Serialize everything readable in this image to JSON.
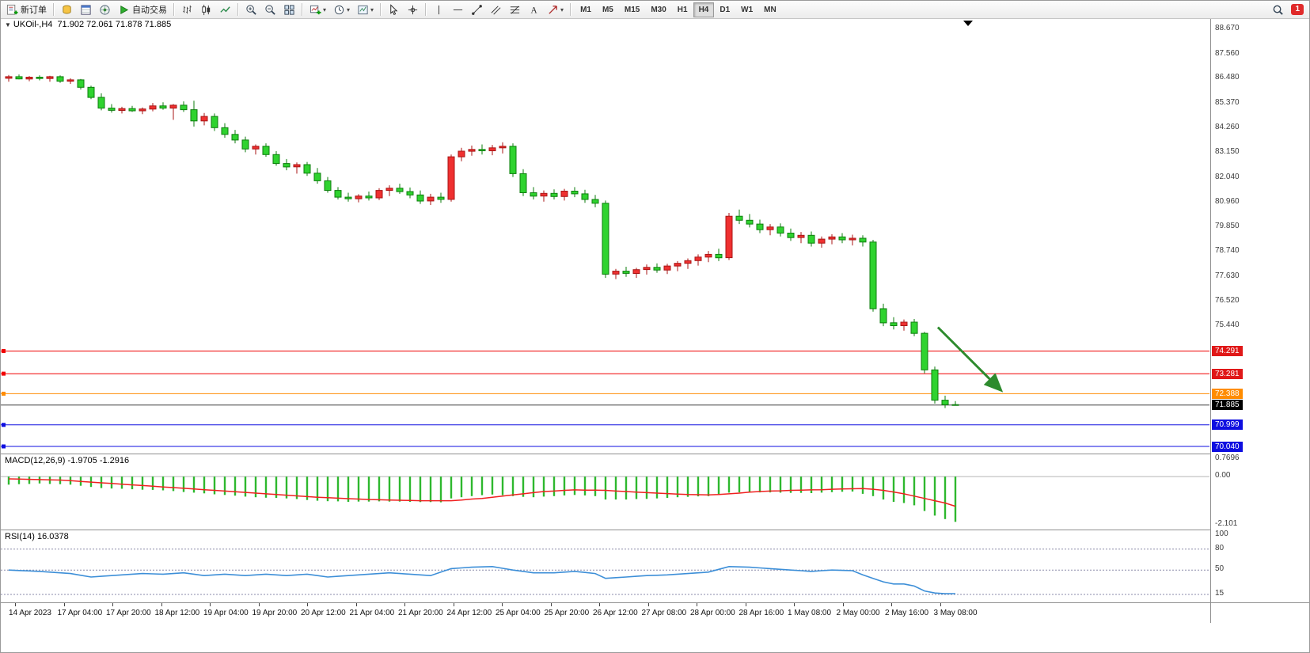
{
  "glyphs": {
    "caret": "▾",
    "collapse": "▼"
  },
  "toolbar": {
    "new_order_label": "新订单",
    "autotrading_label": "自动交易",
    "timeframes": [
      "M1",
      "M5",
      "M15",
      "M30",
      "H1",
      "H4",
      "D1",
      "W1",
      "MN"
    ],
    "active_timeframe": "H4",
    "notification_count": "1"
  },
  "icons": {
    "new_order": "document-plus",
    "market_watch": "coin-stack",
    "data_window": "table",
    "navigator": "compass",
    "autotrading": "play-triangle",
    "chart_bars": "ohlc-bars",
    "chart_candles": "candlesticks",
    "chart_line": "line-zigzag",
    "zoom_in": "magnifier-plus",
    "zoom_out": "magnifier-minus",
    "tile_windows": "grid-2x2",
    "new_chart": "chart-plus",
    "profiles": "clock",
    "templates": "chart-picture",
    "cursor": "arrow-pointer",
    "crosshair": "crosshair",
    "vertical_line": "vertical-line",
    "horizontal_line": "horizontal-line",
    "trendline": "diagonal-line",
    "channel": "parallel-lines",
    "fibonacci": "fibo-lines",
    "text_tool": "letter-A",
    "arrows_tool": "diagonal-arrow",
    "search": "magnifier",
    "notification": "red-badge"
  },
  "chart": {
    "symbol_title": "UKOil-,H4",
    "ohlc_readout": "71.902 72.061 71.878 71.885"
  },
  "indicators": {
    "macd_label": "MACD(12,26,9)",
    "macd_values": "-1.9705 -1.2916",
    "rsi_label": "RSI(14)",
    "rsi_value": "16.0378"
  },
  "chart_data": {
    "type": "candlestick",
    "symbol": "UKOil-",
    "timeframe": "H4",
    "price_axis": {
      "labels": [
        "88.670",
        "87.560",
        "86.480",
        "85.370",
        "84.260",
        "83.150",
        "82.040",
        "80.960",
        "79.850",
        "78.740",
        "77.630",
        "76.520",
        "75.440"
      ],
      "min": 69.9,
      "max": 89.1
    },
    "price_lines": [
      {
        "label": "74.291",
        "value": 74.291,
        "color": "#f00000",
        "label_bg": "#e01818",
        "handle": true
      },
      {
        "label": "73.281",
        "value": 73.281,
        "color": "#f00000",
        "label_bg": "#e01818",
        "handle": true
      },
      {
        "label": "72.388",
        "value": 72.388,
        "color": "#ff8c00",
        "label_bg": "#ff8c00",
        "handle": true
      },
      {
        "label": "71.885",
        "value": 71.885,
        "color": "#3a3a3a",
        "label_bg": "#000000",
        "handle": false
      },
      {
        "label": "70.999",
        "value": 70.999,
        "color": "#0e0ee0",
        "label_bg": "#0e0ee0",
        "handle": true
      },
      {
        "label": "70.040",
        "value": 70.04,
        "color": "#0e0ee0",
        "label_bg": "#0e0ee0",
        "handle": true
      }
    ],
    "candles": [
      [
        86.45,
        86.6,
        86.3,
        86.52
      ],
      [
        86.52,
        86.62,
        86.4,
        86.42
      ],
      [
        86.42,
        86.55,
        86.32,
        86.5
      ],
      [
        86.5,
        86.58,
        86.36,
        86.44
      ],
      [
        86.44,
        86.56,
        86.3,
        86.52
      ],
      [
        86.52,
        86.58,
        86.25,
        86.32
      ],
      [
        86.32,
        86.45,
        86.2,
        86.38
      ],
      [
        86.38,
        86.42,
        85.95,
        86.05
      ],
      [
        86.05,
        86.12,
        85.52,
        85.6
      ],
      [
        85.6,
        85.78,
        85.02,
        85.12
      ],
      [
        85.12,
        85.3,
        84.92,
        85.02
      ],
      [
        85.02,
        85.18,
        84.88,
        85.1
      ],
      [
        85.1,
        85.22,
        84.95,
        85.0
      ],
      [
        85.0,
        85.15,
        84.85,
        85.08
      ],
      [
        85.08,
        85.35,
        84.98,
        85.22
      ],
      [
        85.22,
        85.38,
        85.05,
        85.12
      ],
      [
        85.12,
        85.3,
        84.6,
        85.25
      ],
      [
        85.25,
        85.42,
        84.95,
        85.05
      ],
      [
        85.05,
        85.45,
        84.3,
        84.55
      ],
      [
        84.55,
        84.9,
        84.35,
        84.75
      ],
      [
        84.75,
        84.88,
        84.1,
        84.25
      ],
      [
        84.25,
        84.45,
        83.8,
        83.95
      ],
      [
        83.95,
        84.15,
        83.55,
        83.7
      ],
      [
        83.7,
        83.85,
        83.15,
        83.3
      ],
      [
        83.3,
        83.5,
        83.05,
        83.42
      ],
      [
        83.42,
        83.55,
        82.95,
        83.05
      ],
      [
        83.05,
        83.2,
        82.55,
        82.65
      ],
      [
        82.65,
        82.85,
        82.35,
        82.5
      ],
      [
        82.5,
        82.7,
        82.2,
        82.6
      ],
      [
        82.6,
        82.72,
        82.1,
        82.22
      ],
      [
        82.22,
        82.45,
        81.75,
        81.88
      ],
      [
        81.88,
        82.05,
        81.35,
        81.45
      ],
      [
        81.45,
        81.6,
        81.05,
        81.15
      ],
      [
        81.15,
        81.35,
        80.95,
        81.08
      ],
      [
        81.08,
        81.28,
        80.92,
        81.2
      ],
      [
        81.2,
        81.4,
        81.0,
        81.12
      ],
      [
        81.12,
        81.55,
        81.02,
        81.45
      ],
      [
        81.45,
        81.68,
        81.2,
        81.55
      ],
      [
        81.55,
        81.75,
        81.3,
        81.4
      ],
      [
        81.4,
        81.58,
        81.1,
        81.25
      ],
      [
        81.25,
        81.45,
        80.85,
        80.98
      ],
      [
        80.98,
        81.3,
        80.8,
        81.15
      ],
      [
        81.15,
        81.35,
        80.9,
        81.05
      ],
      [
        81.05,
        83.05,
        80.95,
        82.95
      ],
      [
        82.95,
        83.35,
        82.75,
        83.2
      ],
      [
        83.2,
        83.45,
        83.0,
        83.28
      ],
      [
        83.28,
        83.5,
        83.05,
        83.22
      ],
      [
        83.22,
        83.48,
        83.02,
        83.35
      ],
      [
        83.35,
        83.6,
        83.1,
        83.42
      ],
      [
        83.42,
        83.55,
        82.05,
        82.2
      ],
      [
        82.2,
        82.4,
        81.2,
        81.35
      ],
      [
        81.35,
        81.6,
        81.05,
        81.2
      ],
      [
        81.2,
        81.45,
        80.95,
        81.32
      ],
      [
        81.32,
        81.5,
        81.05,
        81.18
      ],
      [
        81.18,
        81.52,
        81.0,
        81.42
      ],
      [
        81.42,
        81.6,
        81.15,
        81.3
      ],
      [
        81.3,
        81.48,
        80.9,
        81.05
      ],
      [
        81.05,
        81.25,
        80.7,
        80.88
      ],
      [
        80.88,
        81.0,
        77.55,
        77.72
      ],
      [
        77.72,
        77.95,
        77.5,
        77.85
      ],
      [
        77.85,
        78.05,
        77.6,
        77.75
      ],
      [
        77.75,
        78.0,
        77.55,
        77.92
      ],
      [
        77.92,
        78.15,
        77.7,
        78.02
      ],
      [
        78.02,
        78.2,
        77.78,
        77.9
      ],
      [
        77.9,
        78.18,
        77.72,
        78.08
      ],
      [
        78.08,
        78.3,
        77.85,
        78.2
      ],
      [
        78.2,
        78.42,
        77.95,
        78.32
      ],
      [
        78.32,
        78.6,
        78.1,
        78.48
      ],
      [
        78.48,
        78.75,
        78.25,
        78.6
      ],
      [
        78.6,
        78.85,
        78.3,
        78.45
      ],
      [
        78.45,
        80.45,
        78.35,
        80.3
      ],
      [
        80.3,
        80.6,
        79.95,
        80.12
      ],
      [
        80.12,
        80.4,
        79.8,
        79.95
      ],
      [
        79.95,
        80.15,
        79.55,
        79.7
      ],
      [
        79.7,
        79.95,
        79.45,
        79.82
      ],
      [
        79.82,
        79.98,
        79.4,
        79.55
      ],
      [
        79.55,
        79.75,
        79.2,
        79.35
      ],
      [
        79.35,
        79.6,
        79.1,
        79.45
      ],
      [
        79.45,
        79.62,
        78.95,
        79.1
      ],
      [
        79.1,
        79.4,
        78.9,
        79.28
      ],
      [
        79.28,
        79.5,
        79.05,
        79.38
      ],
      [
        79.38,
        79.55,
        79.1,
        79.25
      ],
      [
        79.25,
        79.48,
        79.0,
        79.32
      ],
      [
        79.32,
        79.45,
        78.95,
        79.15
      ],
      [
        79.15,
        79.25,
        76.05,
        76.18
      ],
      [
        76.18,
        76.4,
        75.4,
        75.55
      ],
      [
        75.55,
        75.8,
        75.25,
        75.42
      ],
      [
        75.42,
        75.7,
        75.2,
        75.58
      ],
      [
        75.58,
        75.72,
        74.95,
        75.08
      ],
      [
        75.08,
        75.15,
        73.3,
        73.45
      ],
      [
        73.45,
        73.6,
        71.95,
        72.1
      ],
      [
        72.1,
        72.3,
        71.75,
        71.9
      ],
      [
        71.902,
        72.061,
        71.878,
        71.885
      ]
    ],
    "macd": {
      "histogram": [
        -0.35,
        -0.33,
        -0.32,
        -0.3,
        -0.32,
        -0.33,
        -0.35,
        -0.4,
        -0.45,
        -0.5,
        -0.52,
        -0.53,
        -0.55,
        -0.57,
        -0.58,
        -0.6,
        -0.63,
        -0.67,
        -0.7,
        -0.73,
        -0.77,
        -0.8,
        -0.83,
        -0.87,
        -0.9,
        -0.92,
        -0.93,
        -0.95,
        -0.98,
        -1.02,
        -1.05,
        -1.07,
        -1.08,
        -1.1,
        -1.09,
        -1.09,
        -1.08,
        -1.09,
        -1.09,
        -1.1,
        -1.11,
        -1.11,
        -1.12,
        -0.95,
        -0.9,
        -0.85,
        -0.81,
        -0.78,
        -0.81,
        -0.85,
        -0.88,
        -0.9,
        -0.87,
        -0.85,
        -0.82,
        -0.8,
        -0.82,
        -0.85,
        -1.0,
        -1.0,
        -1.0,
        -0.98,
        -0.97,
        -0.95,
        -0.93,
        -0.9,
        -0.88,
        -0.86,
        -0.85,
        -0.77,
        -0.7,
        -0.69,
        -0.68,
        -0.69,
        -0.69,
        -0.7,
        -0.71,
        -0.71,
        -0.72,
        -0.7,
        -0.68,
        -0.66,
        -0.65,
        -0.75,
        -0.85,
        -1.0,
        -1.1,
        -1.15,
        -1.25,
        -1.5,
        -1.7,
        -1.85,
        -1.9705
      ],
      "signal": [
        -0.1,
        -0.11,
        -0.12,
        -0.13,
        -0.14,
        -0.15,
        -0.18,
        -0.21,
        -0.24,
        -0.27,
        -0.3,
        -0.33,
        -0.36,
        -0.39,
        -0.42,
        -0.45,
        -0.48,
        -0.51,
        -0.54,
        -0.57,
        -0.6,
        -0.63,
        -0.66,
        -0.69,
        -0.72,
        -0.75,
        -0.78,
        -0.81,
        -0.84,
        -0.87,
        -0.9,
        -0.92,
        -0.94,
        -0.96,
        -0.98,
        -1.0,
        -1.01,
        -1.02,
        -1.03,
        -1.04,
        -1.05,
        -1.05,
        -1.05,
        -1.05,
        -1.02,
        -0.98,
        -0.95,
        -0.9,
        -0.85,
        -0.8,
        -0.75,
        -0.7,
        -0.65,
        -0.63,
        -0.6,
        -0.58,
        -0.59,
        -0.59,
        -0.6,
        -0.63,
        -0.65,
        -0.68,
        -0.7,
        -0.72,
        -0.74,
        -0.76,
        -0.78,
        -0.79,
        -0.8,
        -0.78,
        -0.75,
        -0.72,
        -0.68,
        -0.65,
        -0.63,
        -0.62,
        -0.6,
        -0.59,
        -0.58,
        -0.57,
        -0.55,
        -0.54,
        -0.53,
        -0.52,
        -0.55,
        -0.6,
        -0.67,
        -0.75,
        -0.85,
        -0.95,
        -1.05,
        -1.15,
        -1.2916
      ],
      "axis_labels": [
        {
          "text": "0.7696",
          "value": 0.7696
        },
        {
          "text": "0.00",
          "value": 0
        },
        {
          "text": "-2.101",
          "value": -2.101
        }
      ]
    },
    "rsi": {
      "values": [
        50,
        49.3,
        48.7,
        48,
        47,
        46,
        45,
        42.5,
        40,
        41,
        42,
        43,
        44,
        45,
        44.5,
        44,
        45,
        46,
        44,
        42,
        43,
        44,
        43,
        42,
        43,
        44,
        43,
        42,
        43,
        44,
        42,
        40,
        41,
        42,
        43,
        44,
        45,
        46,
        45,
        44,
        43,
        42,
        47,
        52,
        53,
        54,
        54.5,
        55,
        52.5,
        50,
        48,
        46,
        46,
        46,
        47,
        48,
        46.5,
        45,
        38,
        39,
        40,
        41,
        42,
        42.5,
        43,
        44,
        45,
        46,
        47,
        51,
        55,
        54.5,
        54,
        53,
        52,
        51,
        50,
        49,
        48,
        49,
        50,
        49.5,
        49,
        43,
        38,
        33,
        30,
        30,
        27,
        20,
        17,
        16,
        16.04
      ],
      "levels": [
        80,
        50,
        15
      ],
      "axis_labels": [
        {
          "text": "100",
          "value": 100
        },
        {
          "text": "80",
          "value": 80
        },
        {
          "text": "50",
          "value": 50
        },
        {
          "text": "15",
          "value": 15
        }
      ]
    },
    "time_axis": [
      "14 Apr 2023",
      "17 Apr 04:00",
      "17 Apr 20:00",
      "18 Apr 12:00",
      "19 Apr 04:00",
      "19 Apr 20:00",
      "20 Apr 12:00",
      "21 Apr 04:00",
      "21 Apr 20:00",
      "24 Apr 12:00",
      "25 Apr 04:00",
      "25 Apr 20:00",
      "26 Apr 12:00",
      "27 Apr 08:00",
      "28 Apr 00:00",
      "28 Apr 16:00",
      "1 May 08:00",
      "2 May 00:00",
      "2 May 16:00",
      "3 May 08:00"
    ],
    "annotation_arrow": {
      "from_index": 90.3,
      "from_price": 75.35,
      "to_index": 96.3,
      "to_price": 72.6,
      "color": "#2e8b2e"
    },
    "colors": {
      "up": "#ef3030",
      "up_border": "#a81414",
      "down": "#2fd32f",
      "down_border": "#0c7e0c",
      "macd_hist": "#2eb82e",
      "macd_signal": "#f02020",
      "rsi_line": "#3d8fd8",
      "bid_line": "#3a3a3a"
    }
  }
}
